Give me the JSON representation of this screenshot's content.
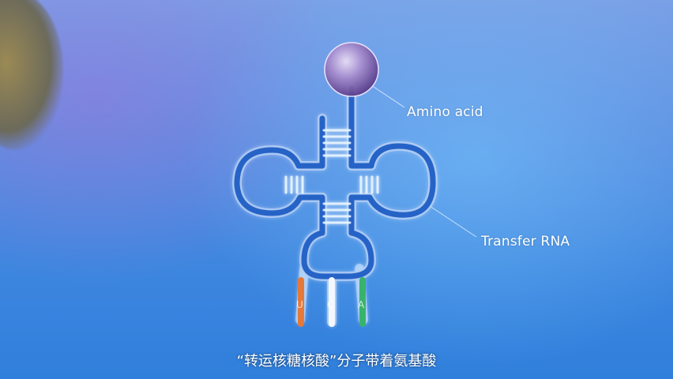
{
  "labels": {
    "amino_acid": "Amino acid",
    "transfer_rna": "Transfer RNA"
  },
  "anticodon": {
    "bases": [
      "U",
      "C",
      "A"
    ],
    "colors": [
      "#e5793a",
      "#ffffff",
      "#38b36b"
    ]
  },
  "subtitle": "“转运核糖核酸”分子带着氨基酸",
  "colors": {
    "rna_strand": "#1e5fc0",
    "rna_outline": "#cfe6ff",
    "amino_acid_sphere": "#9b86c9"
  }
}
